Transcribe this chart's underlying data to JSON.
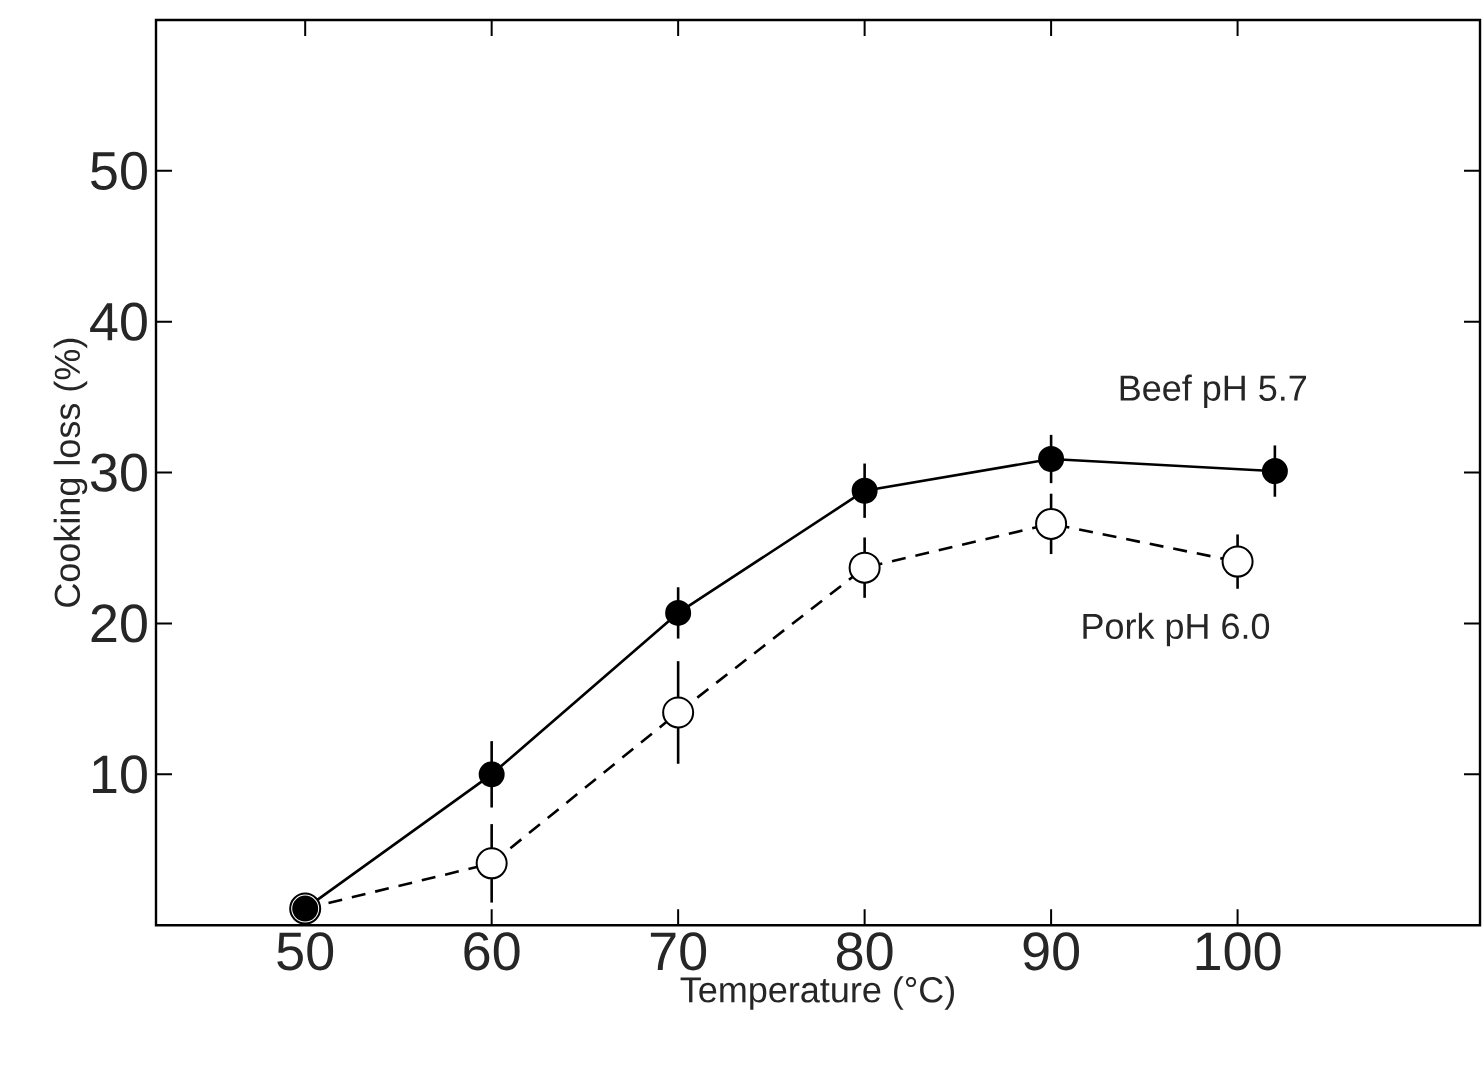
{
  "chart_data": {
    "type": "line",
    "xlabel": "Temperature (°C)",
    "ylabel": "Cooking loss (%)",
    "xlim": [
      42,
      113
    ],
    "ylim": [
      0,
      60
    ],
    "xticks": [
      50,
      60,
      70,
      80,
      90,
      100
    ],
    "yticks": [
      10,
      20,
      30,
      40,
      50
    ],
    "marker": "circle",
    "series": [
      {
        "name": "Beef pH 5.7",
        "color": "#000000",
        "line_style": "solid",
        "x": [
          50,
          60,
          70,
          80,
          90,
          102
        ],
        "values": [
          1.1,
          10.0,
          20.7,
          28.8,
          30.9,
          30.1
        ],
        "errors": [
          null,
          2.2,
          1.7,
          1.8,
          1.6,
          1.7
        ]
      },
      {
        "name": "Pork pH 6.0",
        "color": "#ffffff",
        "line_style": "dashed",
        "x": [
          50,
          60,
          70,
          80,
          90,
          100
        ],
        "values": [
          1.1,
          4.1,
          14.1,
          23.7,
          26.6,
          24.1
        ],
        "errors": [
          null,
          2.6,
          3.4,
          2.0,
          2.0,
          1.8
        ]
      }
    ]
  }
}
